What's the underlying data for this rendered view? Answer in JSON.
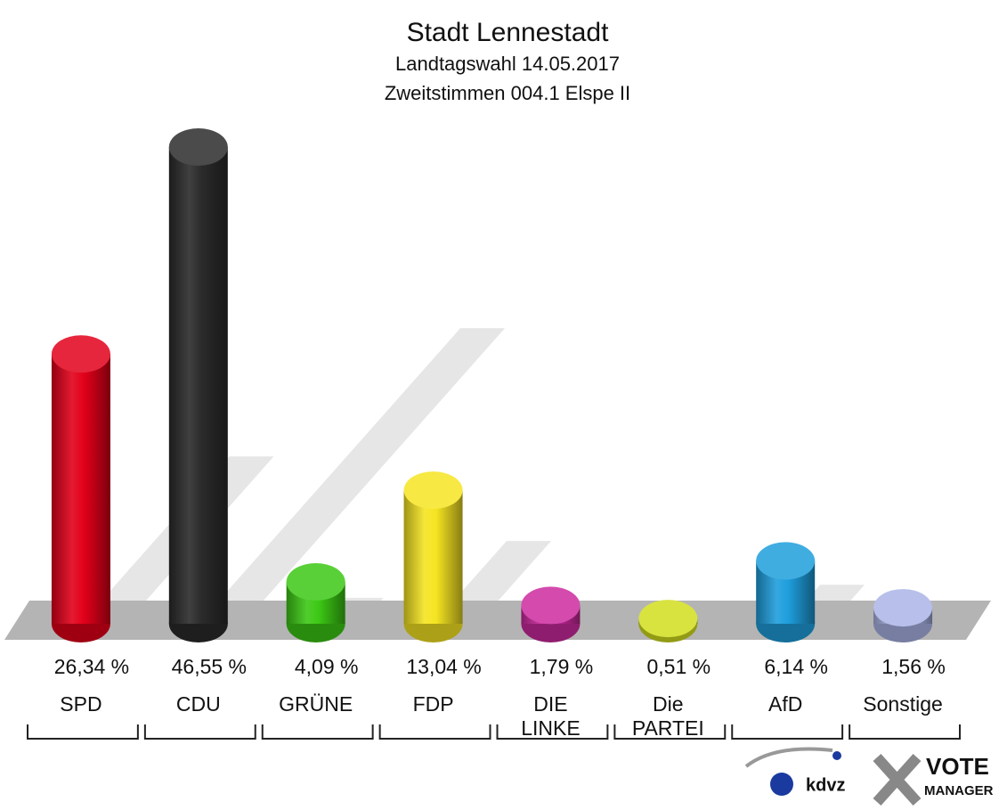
{
  "chart_data": {
    "type": "bar",
    "title": "Stadt Lennestadt",
    "subtitle": [
      "Landtagswahl 14.05.2017",
      "Zweitstimmen 004.1 Elspe II"
    ],
    "categories": [
      "SPD",
      "CDU",
      "GRÜNE",
      "FDP",
      "DIE\nLINKE",
      "Die\nPARTEI",
      "AfD",
      "Sonstige"
    ],
    "values": [
      26.34,
      46.55,
      4.09,
      13.04,
      1.79,
      0.51,
      6.14,
      1.56
    ],
    "value_labels": [
      "26,34 %",
      "46,55 %",
      "4,09 %",
      "13,04 %",
      "1,79 %",
      "0,51 %",
      "6,14 %",
      "1,56 %"
    ],
    "colors": [
      "#e2001a",
      "#2b2b2b",
      "#3cc814",
      "#f5e422",
      "#cc2a9e",
      "#d2de1e",
      "#1e9edc",
      "#aab4e6"
    ]
  },
  "logos": {
    "kdvz": "kdvz",
    "vote": "VOTE",
    "manager": "MANAGER"
  }
}
